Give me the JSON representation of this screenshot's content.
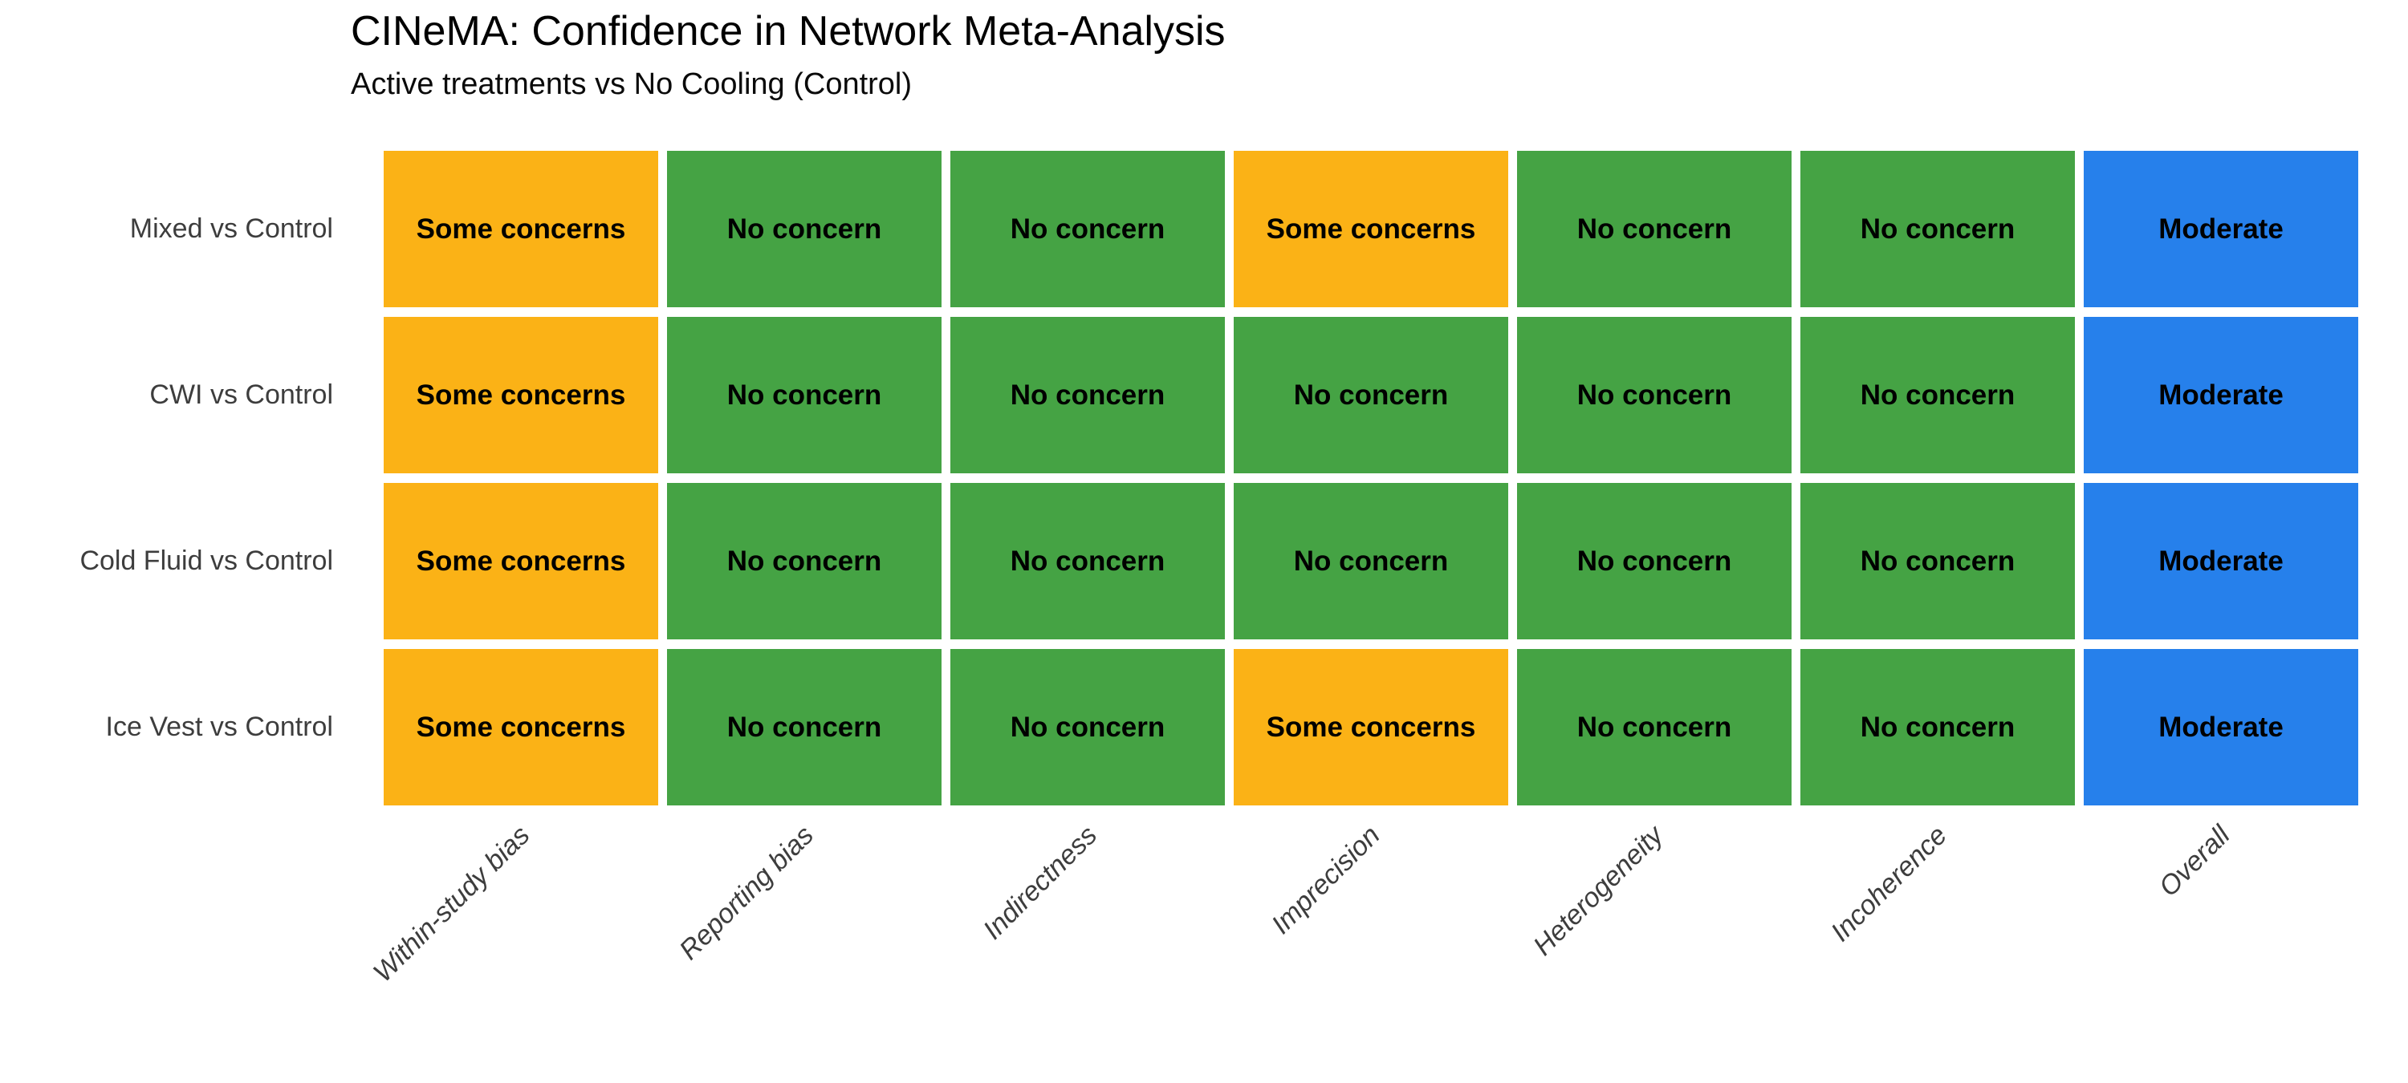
{
  "chart_data": {
    "type": "heatmap",
    "title": "CINeMA: Confidence in Network Meta-Analysis",
    "subtitle": "Active treatments vs No Cooling (Control)",
    "columns": [
      "Within-study bias",
      "Reporting bias",
      "Indirectness",
      "Imprecision",
      "Heterogeneity",
      "Incoherence",
      "Overall"
    ],
    "rows": [
      {
        "label": "Mixed vs Control",
        "values": [
          "Some concerns",
          "No concern",
          "No concern",
          "Some concerns",
          "No concern",
          "No concern",
          "Moderate"
        ]
      },
      {
        "label": "CWI vs Control",
        "values": [
          "Some concerns",
          "No concern",
          "No concern",
          "No concern",
          "No concern",
          "No concern",
          "Moderate"
        ]
      },
      {
        "label": "Cold Fluid vs Control",
        "values": [
          "Some concerns",
          "No concern",
          "No concern",
          "No concern",
          "No concern",
          "No concern",
          "Moderate"
        ]
      },
      {
        "label": "Ice Vest vs Control",
        "values": [
          "Some concerns",
          "No concern",
          "No concern",
          "Some concerns",
          "No concern",
          "No concern",
          "Moderate"
        ]
      }
    ],
    "value_colors": {
      "Some concerns": "#FBB216",
      "No concern": "#45A344",
      "Moderate": "#2680EB"
    },
    "text_color_cells": "#000000",
    "axis_text_color": "#3d3d3d",
    "grid": "off",
    "legend_position": "none"
  }
}
